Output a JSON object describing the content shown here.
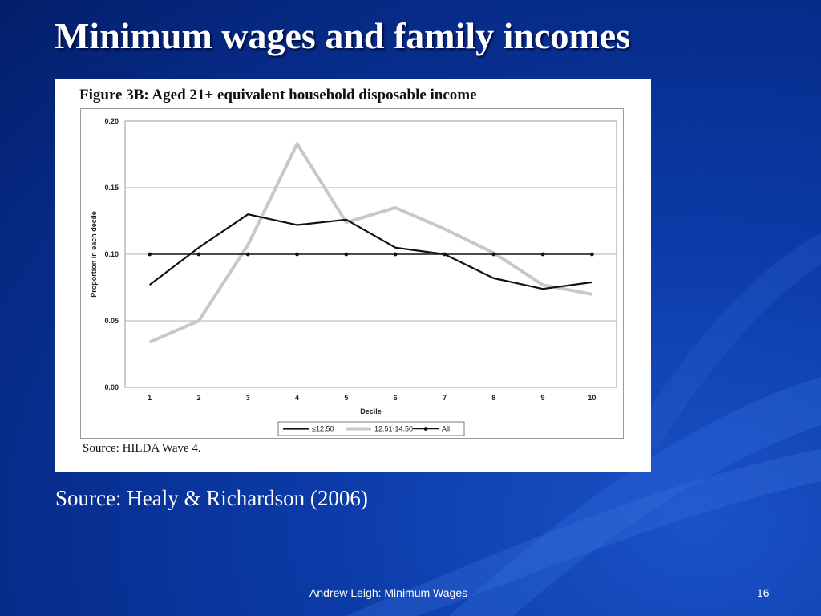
{
  "slide": {
    "title": "Minimum wages and family incomes",
    "caption": "Source: Healy & Richardson (2006)",
    "footer": "Andrew Leigh: Minimum Wages",
    "page_number": "16"
  },
  "figure": {
    "title": "Figure 3B:  Aged 21+ equivalent household disposable income",
    "source": "Source: HILDA Wave 4."
  },
  "colors": {
    "background": "#0b3aa6",
    "series_low": "#111111",
    "series_mid": "#c8c8c8",
    "series_all": "#111111"
  },
  "chart_data": {
    "type": "line",
    "xlabel": "Decile",
    "ylabel": "Proportion in each decile",
    "x": [
      1,
      2,
      3,
      4,
      5,
      6,
      7,
      8,
      9,
      10
    ],
    "ylim": [
      0,
      0.2
    ],
    "yticks": [
      "0.00",
      "0.05",
      "0.10",
      "0.15",
      "0.20"
    ],
    "grid": true,
    "legend_position": "bottom",
    "series": [
      {
        "name": "≤12.50",
        "values": [
          0.077,
          0.105,
          0.13,
          0.122,
          0.126,
          0.105,
          0.1,
          0.082,
          0.074,
          0.079
        ]
      },
      {
        "name": "12.51-14.50",
        "values": [
          0.034,
          0.05,
          0.107,
          0.183,
          0.124,
          0.135,
          0.119,
          0.101,
          0.077,
          0.07
        ]
      },
      {
        "name": "All",
        "values": [
          0.1,
          0.1,
          0.1,
          0.1,
          0.1,
          0.1,
          0.1,
          0.1,
          0.1,
          0.1
        ]
      }
    ]
  }
}
